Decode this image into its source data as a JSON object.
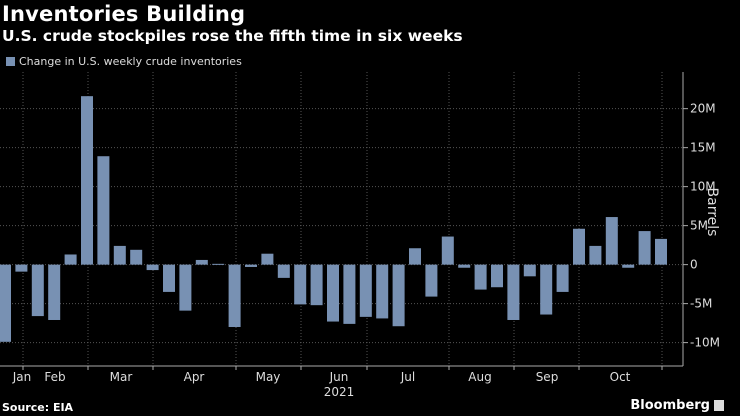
{
  "title": "Inventories Building",
  "subtitle": "U.S. crude stockpiles rose the fifth time in six weeks",
  "source": "Source: EIA",
  "brand": "Bloomberg",
  "chart_data": {
    "type": "bar",
    "legend": "Change in U.S. weekly crude inventories",
    "legend_placement": "top-left",
    "ylabel": "Barrels",
    "year_label": "2021",
    "month_labels": [
      "Jan",
      "Feb",
      "Mar",
      "Apr",
      "May",
      "Jun",
      "Jul",
      "Aug",
      "Sep",
      "Oct"
    ],
    "yticks": [
      -10,
      -5,
      0,
      5,
      10,
      15,
      20
    ],
    "ytick_labels": [
      "-10M",
      "-5M",
      "0",
      "5M",
      "10M",
      "15M",
      "20M"
    ],
    "ylim": [
      -13,
      24.7
    ],
    "units": "million barrels",
    "grid": true,
    "bar_color": "#7891b3",
    "values": [
      -9.9,
      -0.9,
      -6.6,
      -7.1,
      1.3,
      21.6,
      13.9,
      2.4,
      1.9,
      -0.7,
      -3.5,
      -5.9,
      0.6,
      0.1,
      -8.0,
      -0.3,
      1.4,
      -1.7,
      -5.1,
      -5.2,
      -7.3,
      -7.6,
      -6.7,
      -6.9,
      -7.9,
      2.1,
      -4.1,
      3.6,
      -0.4,
      -3.2,
      -2.9,
      -7.1,
      -1.5,
      -6.4,
      -3.5,
      4.6,
      2.4,
      6.1,
      -0.4,
      4.3,
      3.3
    ]
  }
}
